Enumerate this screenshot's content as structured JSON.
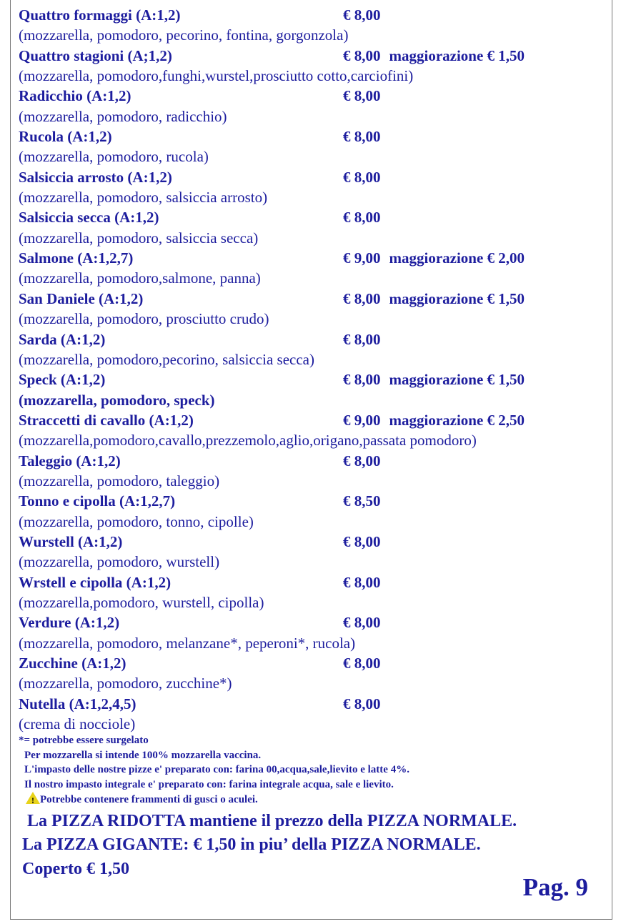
{
  "items": [
    {
      "name": "Quattro formaggi (A:1,2)",
      "price": "€ 8,00",
      "extra": "",
      "desc": "(mozzarella, pomodoro, pecorino, fontina, gorgonzola)"
    },
    {
      "name": "Quattro stagioni (A;1,2)",
      "price": "€ 8,00",
      "extra": "maggiorazione € 1,50",
      "desc": "(mozzarella, pomodoro,funghi,wurstel,prosciutto cotto,carciofini)"
    },
    {
      "name": "Radicchio (A:1,2)",
      "price": "€ 8,00",
      "extra": "",
      "desc": "(mozzarella, pomodoro, radicchio)"
    },
    {
      "name": "Rucola (A:1,2)",
      "price": "€ 8,00",
      "extra": "",
      "desc": "(mozzarella, pomodoro, rucola)"
    },
    {
      "name": "Salsiccia arrosto (A:1,2)",
      "price": "€ 8,00",
      "extra": "",
      "desc": "(mozzarella, pomodoro, salsiccia arrosto)"
    },
    {
      "name": "Salsiccia secca (A:1,2)",
      "price": "€ 8,00",
      "extra": "",
      "desc": "(mozzarella, pomodoro, salsiccia secca)"
    },
    {
      "name": "Salmone (A:1,2,7)",
      "price": "€ 9,00",
      "extra": "maggiorazione € 2,00",
      "desc": "(mozzarella, pomodoro,salmone, panna)"
    },
    {
      "name": "San Daniele (A:1,2)",
      "price": "€ 8,00",
      "extra": "maggiorazione € 1,50",
      "desc": "(mozzarella, pomodoro, prosciutto crudo)"
    },
    {
      "name": "Sarda (A:1,2)",
      "price": "€ 8,00",
      "extra": "",
      "desc": "(mozzarella, pomodoro,pecorino, salsiccia secca)"
    },
    {
      "name": "Speck (A:1,2)",
      "price": "€ 8,00",
      "extra": "maggiorazione  € 1,50",
      "desc": "(mozzarella, pomodoro, speck)",
      "desc_bold": true
    },
    {
      "name": "Straccetti di cavallo (A:1,2)",
      "price": "€ 9,00",
      "extra": "maggiorazione € 2,50",
      "desc": "(mozzarella,pomodoro,cavallo,prezzemolo,aglio,origano,passata pomodoro)"
    },
    {
      "name": "Taleggio (A:1,2)",
      "price": "€ 8,00",
      "extra": "",
      "desc": "(mozzarella, pomodoro, taleggio)"
    },
    {
      "name": "Tonno e cipolla (A:1,2,7)",
      "price": "€ 8,50",
      "extra": "",
      "desc": "(mozzarella, pomodoro, tonno, cipolle)"
    },
    {
      "name": "Wurstell (A:1,2)",
      "price": "€ 8,00",
      "extra": "",
      "desc": "(mozzarella, pomodoro, wurstell)"
    },
    {
      "name": "Wrstell e cipolla (A:1,2)",
      "price": "€ 8,00",
      "extra": "",
      "desc": "(mozzarella,pomodoro, wurstell, cipolla)"
    },
    {
      "name": "Verdure (A:1,2)",
      "price": "€ 8,00",
      "extra": "",
      "desc": "(mozzarella, pomodoro, melanzane*, peperoni*, rucola)"
    },
    {
      "name": "Zucchine (A:1,2)",
      "price": "€ 8,00",
      "extra": "",
      "desc": "(mozzarella, pomodoro, zucchine*)"
    },
    {
      "name": "Nutella (A:1,2,4,5)",
      "price": "€ 8,00",
      "extra": "",
      "desc": "(crema di nocciole)"
    }
  ],
  "notes": {
    "frozen": "*= potrebbe essere surgelato",
    "mozzarella": "Per mozzarella si intende 100% mozzarella vaccina.",
    "dough": "L'impasto delle nostre pizze e' preparato con: farina 00,acqua,sale,lievito e latte 4%.",
    "wholegrain": "Il nostro impasto integrale e' preparato con: farina integrale acqua, sale e lievito.",
    "warning_icon": "warning-triangle",
    "warning_color": "#e8d31a",
    "warning": "Potrebbe contenere frammenti di gusci o aculei."
  },
  "footer": {
    "ridotta": "La PIZZA RIDOTTA mantiene il prezzo della PIZZA NORMALE.",
    "gigante": "La PIZZA GIGANTE: € 1,50 in piu’ della PIZZA NORMALE.",
    "coperto": "Coperto € 1,50",
    "page": "Pag. 9"
  },
  "colors": {
    "text": "#1d1d9e"
  }
}
